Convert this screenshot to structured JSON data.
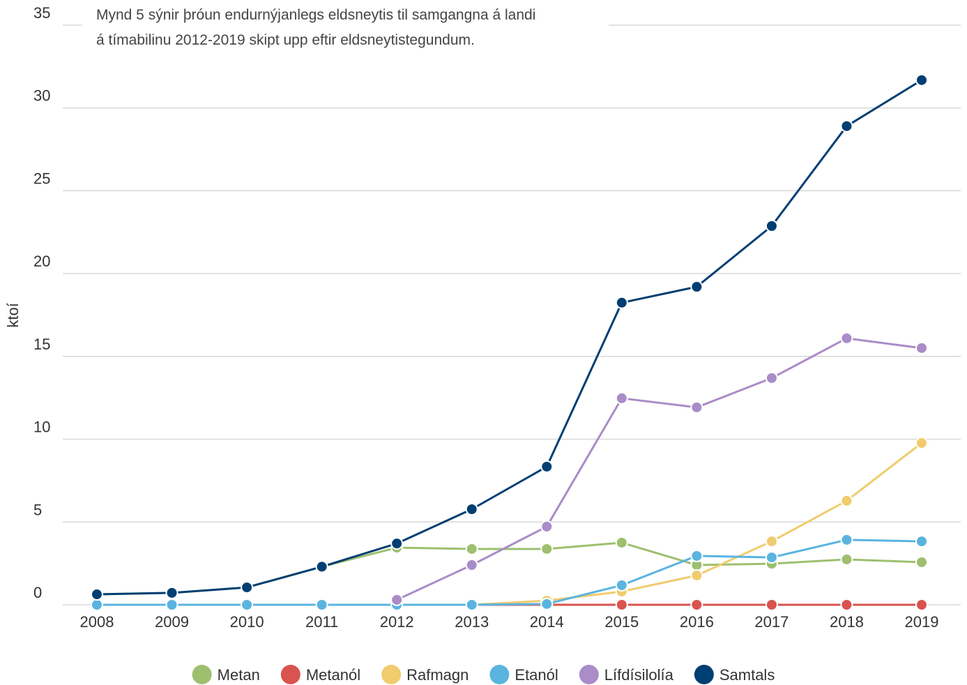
{
  "chart_data": {
    "type": "line",
    "title": [
      "Mynd 5 sýnir þróun endurnýjanlegs eldsneytis til samgangna á landi",
      "á tímabilinu 2012-2019 skipt upp eftir eldsneytistegundum."
    ],
    "y_label": "ktoí",
    "categories": [
      "2008",
      "2009",
      "2010",
      "2011",
      "2012",
      "2013",
      "2014",
      "2015",
      "2016",
      "2017",
      "2018",
      "2019"
    ],
    "series": [
      {
        "name": "Metan",
        "color": "#9dbf6e",
        "values": [
          0.63,
          0.72,
          1.05,
          2.3,
          3.45,
          3.37,
          3.37,
          3.75,
          2.4,
          2.48,
          2.74,
          2.57
        ]
      },
      {
        "name": "Metanól",
        "color": "#d9534f",
        "values": [
          0,
          0,
          0,
          0,
          0,
          0,
          0,
          0,
          0,
          0,
          0,
          0
        ]
      },
      {
        "name": "Rafmagn",
        "color": "#f0cc6e",
        "values": [
          0,
          0,
          0,
          0,
          0,
          0,
          0.25,
          0.8,
          1.77,
          3.83,
          6.28,
          9.77
        ]
      },
      {
        "name": "Etanól",
        "color": "#5ab4e0",
        "values": [
          0,
          0,
          0,
          0,
          0,
          0,
          0.05,
          1.18,
          2.95,
          2.86,
          3.92,
          3.83
        ]
      },
      {
        "name": "Lífdísilolía",
        "color": "#a98cc8",
        "values": [
          null,
          null,
          null,
          null,
          0.3,
          2.4,
          4.72,
          12.47,
          11.92,
          13.69,
          16.09,
          15.5
        ]
      },
      {
        "name": "Samtals",
        "color": "#003f73",
        "values": [
          0.63,
          0.72,
          1.05,
          2.3,
          3.7,
          5.77,
          8.34,
          18.24,
          19.2,
          22.87,
          28.9,
          31.68
        ]
      }
    ],
    "ylim": [
      0,
      35
    ],
    "yticks": [
      0,
      5,
      10,
      15,
      20,
      25,
      30,
      35
    ],
    "grid": true,
    "legend": "bottom"
  }
}
